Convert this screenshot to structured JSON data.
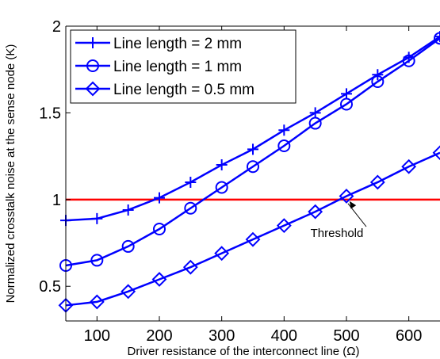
{
  "chart_data": {
    "type": "line",
    "xlabel": "Driver resistance of the interconnect line (Ω)",
    "ylabel": "Normalized crosstalk noise at the sense node (K)",
    "xlim": [
      50,
      650
    ],
    "ylim": [
      0.3,
      2.0
    ],
    "x_ticks": [
      100,
      200,
      300,
      400,
      500,
      600
    ],
    "y_ticks": [
      0.5,
      1,
      1.5,
      2
    ],
    "x_tick_labels": [
      "100",
      "200",
      "300",
      "400",
      "500",
      "600"
    ],
    "y_tick_labels": [
      "0.5",
      "1",
      "1.5",
      "2"
    ],
    "grid": false,
    "legend_position": "top-left",
    "x": [
      50,
      100,
      150,
      200,
      250,
      300,
      350,
      400,
      450,
      500,
      550,
      600,
      650
    ],
    "series": [
      {
        "name": "Line length = 2 mm",
        "marker": "plus",
        "color": "#0000ff",
        "values": [
          0.88,
          0.89,
          0.94,
          1.01,
          1.1,
          1.2,
          1.29,
          1.4,
          1.5,
          1.61,
          1.72,
          1.82,
          1.94
        ]
      },
      {
        "name": "Line length = 1 mm",
        "marker": "circle",
        "color": "#0000ff",
        "values": [
          0.62,
          0.65,
          0.73,
          0.83,
          0.95,
          1.07,
          1.19,
          1.31,
          1.44,
          1.55,
          1.68,
          1.8,
          1.93
        ]
      },
      {
        "name": "Line length = 0.5 mm",
        "marker": "diamond",
        "color": "#0000ff",
        "values": [
          0.39,
          0.41,
          0.47,
          0.54,
          0.61,
          0.69,
          0.77,
          0.85,
          0.93,
          1.02,
          1.1,
          1.19,
          1.27
        ]
      }
    ],
    "threshold": {
      "value": 1.0,
      "color": "#ff0000",
      "label": "Threshold",
      "arrow_target_x": 505
    }
  }
}
